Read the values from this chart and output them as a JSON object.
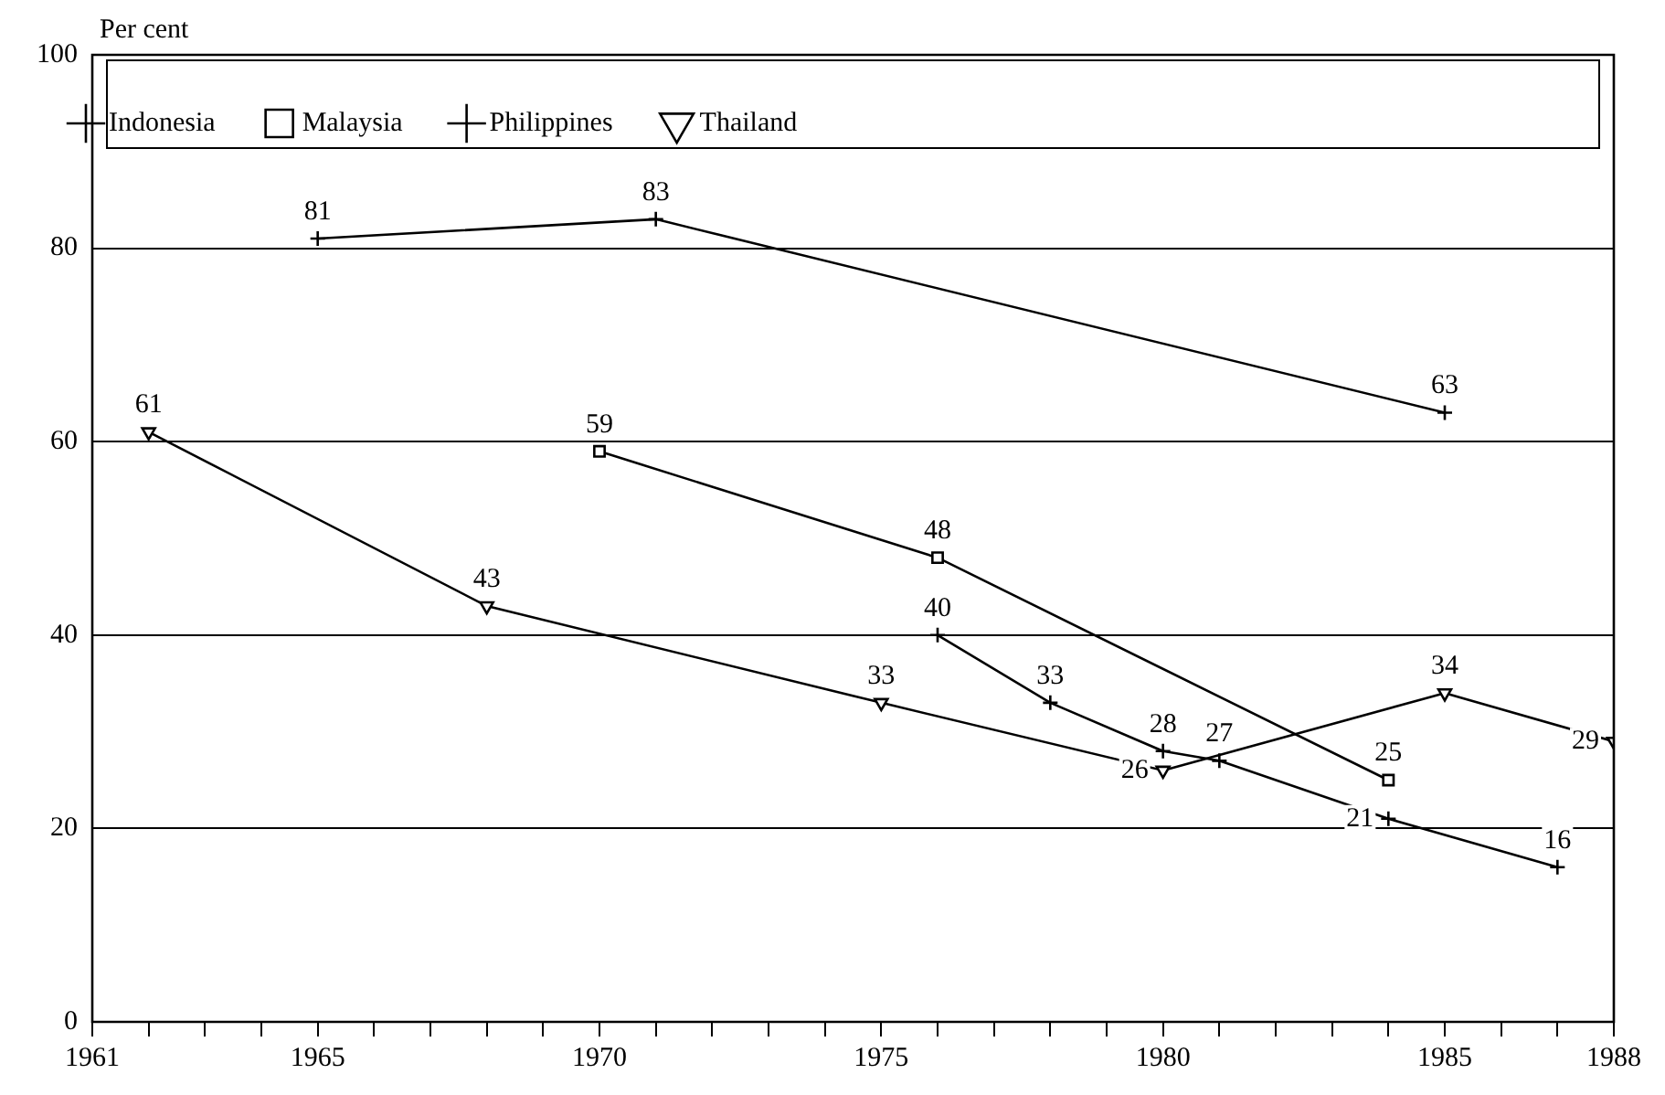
{
  "chart_data": {
    "type": "line",
    "ylabel": "Per cent",
    "xlim": [
      1961,
      1988
    ],
    "xticks": [
      1961,
      {
        "value": 1962,
        "label": null
      },
      {
        "value": 1963,
        "label": null
      },
      {
        "value": 1964,
        "label": null
      },
      1965,
      {
        "value": 1966,
        "label": null
      },
      {
        "value": 1967,
        "label": null
      },
      {
        "value": 1968,
        "label": null
      },
      {
        "value": 1969,
        "label": null
      },
      1970,
      {
        "value": 1971,
        "label": null
      },
      {
        "value": 1972,
        "label": null
      },
      {
        "value": 1973,
        "label": null
      },
      {
        "value": 1974,
        "label": null
      },
      1975,
      {
        "value": 1976,
        "label": null
      },
      {
        "value": 1977,
        "label": null
      },
      {
        "value": 1978,
        "label": null
      },
      {
        "value": 1979,
        "label": null
      },
      1980,
      {
        "value": 1981,
        "label": null
      },
      {
        "value": 1982,
        "label": null
      },
      {
        "value": 1983,
        "label": null
      },
      {
        "value": 1984,
        "label": null
      },
      1985,
      {
        "value": 1986,
        "label": null
      },
      {
        "value": 1987,
        "label": null
      },
      1988
    ],
    "ylim": [
      0,
      100
    ],
    "yticks": [
      0,
      20,
      40,
      60,
      80,
      100
    ],
    "grid": "y",
    "legend": "top",
    "data_labels": true,
    "line_style": "solid",
    "series": [
      {
        "name": "Indonesia",
        "color": "#000000",
        "marker": "cross",
        "x": [
          1976,
          1978,
          1980,
          1981,
          1984,
          1987
        ],
        "values": [
          40,
          33,
          28,
          27,
          21,
          16
        ]
      },
      {
        "name": "Malaysia",
        "color": "#000000",
        "marker": "square",
        "x": [
          1970,
          1976,
          1984
        ],
        "values": [
          59,
          48,
          25
        ]
      },
      {
        "name": "Philippines",
        "color": "#000000",
        "marker": "cross",
        "x": [
          1965,
          1971,
          1985
        ],
        "values": [
          81,
          83,
          63
        ]
      },
      {
        "name": "Thailand",
        "color": "#000000",
        "marker": "triangle",
        "x": [
          1962,
          1968,
          1975,
          1980,
          1985,
          1988
        ],
        "values": [
          61,
          43,
          33,
          26,
          34,
          29
        ]
      }
    ]
  }
}
